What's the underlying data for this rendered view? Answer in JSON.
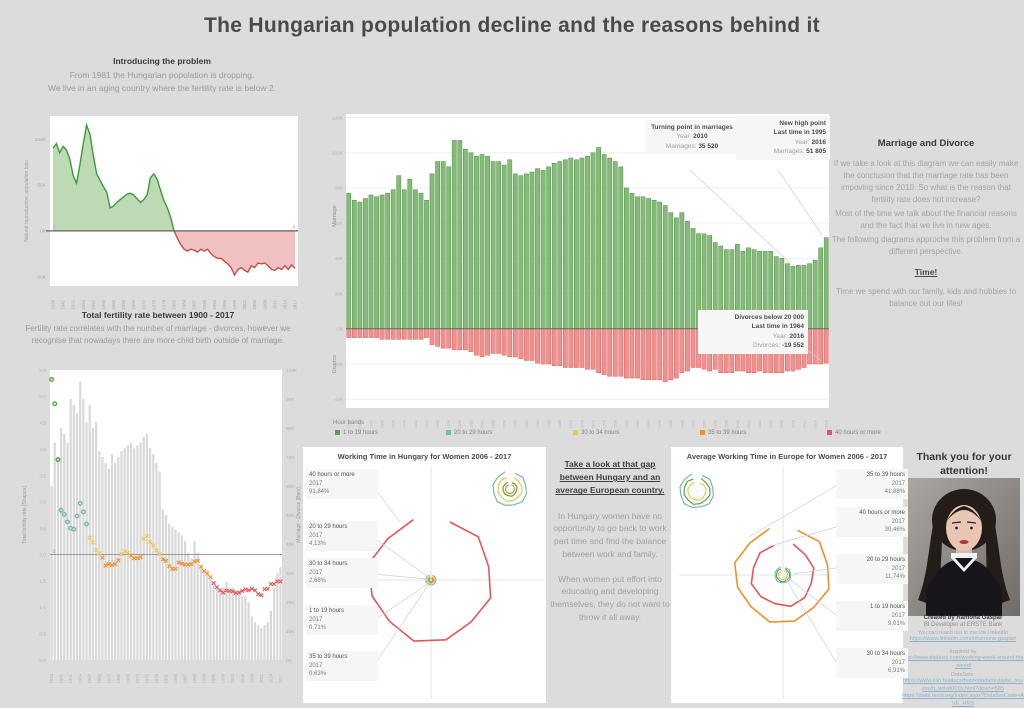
{
  "title": "The Hungarian population decline and the reasons behind it",
  "intro": {
    "heading": "Introducing the problem",
    "line1": "From  1981 the Hungarian population is dropping.",
    "line2": "We live in an aging country where the fertility rate is below 2."
  },
  "colors": {
    "green": "#59a14f",
    "teal": "#76b7b2",
    "yellow": "#edc948",
    "orange": "#f28e2b",
    "red": "#e15759",
    "bar_green_fill": "#85bb79",
    "bar_green_stroke": "#55914b",
    "bar_red_fill": "#ef918f",
    "bar_red_stroke": "#d95f5c",
    "area_green_fill": "#bedab5",
    "area_green_stroke": "#3a9a3c",
    "area_red_fill": "#f1c1c1",
    "area_red_stroke": "#c0504d",
    "gray_bar": "#d9d9d9",
    "link": "#8fb2c9"
  },
  "chart_data": [
    {
      "id": "natural",
      "type": "area",
      "ylabel": "Natural reproduction, population loss",
      "yticks": [
        {
          "label": "100K",
          "v": 100
        },
        {
          "label": "50K",
          "v": 50
        },
        {
          "label": "0K",
          "v": 0
        },
        {
          "label": "-50K",
          "v": -50
        }
      ],
      "ylim": [
        -60,
        125
      ],
      "x_years": {
        "head": [
          1938,
          1939,
          1940,
          1941,
          1942,
          1943
        ],
        "from": 1951,
        "to": 2017
      },
      "xticklabels": [
        "1938",
        "1941",
        "1951",
        "1954",
        "1957",
        "1960",
        "1963",
        "1966",
        "1969",
        "1972",
        "1975",
        "1978",
        "1981",
        "1984",
        "1987",
        "1990",
        "1993",
        "1996",
        "1999",
        "2002",
        "2005",
        "2008",
        "2011",
        "2014",
        "2017"
      ],
      "zero_labels": [
        "0",
        "0"
      ],
      "values": [
        90,
        95,
        85,
        92,
        88,
        78,
        60,
        52,
        72,
        95,
        115,
        105,
        82,
        62,
        55,
        48,
        42,
        25,
        27,
        31,
        34,
        37,
        40,
        41,
        39,
        35,
        31,
        34,
        39,
        58,
        62,
        56,
        44,
        33,
        25,
        15,
        0,
        -8,
        -15,
        -20,
        -22,
        -20,
        -21,
        -23,
        -20,
        -22,
        -20,
        -25,
        -28,
        -30,
        -30,
        -33,
        -36,
        -40,
        -48,
        -42,
        -40,
        -43,
        -45,
        -38,
        -40,
        -35,
        -36,
        -35,
        -38,
        -42,
        -43,
        -40,
        -42,
        -38,
        -42,
        -37,
        -41
      ]
    },
    {
      "id": "marriage_divorce",
      "type": "bar",
      "ylabel_top": "Marriage",
      "ylabel_bottom": "Divorce",
      "yticks": [
        {
          "label": "120K",
          "v": 120
        },
        {
          "label": "100K",
          "v": 100
        },
        {
          "label": "80K",
          "v": 80
        },
        {
          "label": "60K",
          "v": 60
        },
        {
          "label": "40K",
          "v": 40
        },
        {
          "label": "20K",
          "v": 20
        },
        {
          "label": "0K",
          "v": 0
        },
        {
          "label": "-20K",
          "v": -20
        },
        {
          "label": "-40K",
          "v": -40
        }
      ],
      "ylim": [
        -45,
        122
      ],
      "x_years": {
        "from": 1930,
        "to": 2016
      },
      "xtick_step": 2,
      "series": [
        {
          "name": "Marriage",
          "values": [
            77,
            73,
            72,
            74,
            76,
            75,
            76,
            77,
            79,
            87,
            79,
            85,
            79,
            77,
            73,
            88,
            95,
            95,
            92,
            107,
            107,
            102,
            100,
            98,
            99,
            98,
            95,
            95,
            93,
            96,
            88,
            87,
            88,
            89,
            91,
            90,
            92,
            94,
            95,
            96,
            97,
            96,
            97,
            98,
            100,
            103,
            99,
            97,
            95,
            92,
            80,
            77,
            75,
            75,
            74,
            73,
            72,
            70,
            66,
            63,
            66,
            61,
            57,
            54,
            54,
            53,
            49,
            47,
            45,
            45,
            48,
            44,
            46,
            45,
            44,
            44,
            44,
            41,
            40,
            37,
            35.5,
            36,
            36,
            37,
            39,
            46,
            51.8
          ]
        },
        {
          "name": "Divorce",
          "values": [
            -5,
            -5,
            -5,
            -5,
            -5,
            -5,
            -6,
            -6,
            -6,
            -6,
            -6,
            -6,
            -6,
            -6,
            -5,
            -9,
            -10,
            -11,
            -11,
            -12,
            -12,
            -12,
            -13,
            -15,
            -16,
            -15,
            -14,
            -14,
            -15,
            -16,
            -16,
            -17,
            -18,
            -18,
            -19.5,
            -20,
            -20,
            -21,
            -21,
            -22,
            -22,
            -22,
            -22,
            -23,
            -23,
            -25,
            -26,
            -27,
            -27,
            -27,
            -28,
            -28,
            -28,
            -29,
            -29,
            -29,
            -29,
            -30,
            -29,
            -28,
            -25,
            -24,
            -22,
            -22,
            -23,
            -24,
            -23,
            -25,
            -25,
            -25,
            -24,
            -24,
            -25,
            -25,
            -24,
            -25,
            -25,
            -25,
            -25,
            -24,
            -24,
            -23,
            -22,
            -20,
            -20,
            -20,
            -19.5
          ]
        }
      ],
      "annotations": [
        {
          "title": "Turning point in marriages",
          "subtitle": "",
          "rows": [
            [
              "Year:",
              "2010"
            ],
            [
              "Marriages:",
              "35 520"
            ]
          ]
        },
        {
          "title": "New high point",
          "subtitle": "Last time in 1995",
          "rows": [
            [
              "Year:",
              "2016"
            ],
            [
              "Marriages:",
              "51 805"
            ]
          ]
        },
        {
          "title": "Divorces below 20 000",
          "subtitle": "Last time in 1964",
          "rows": [
            [
              "Year:",
              "2016"
            ],
            [
              "Divorces:",
              "-19 552"
            ]
          ]
        }
      ]
    },
    {
      "id": "fertility",
      "type": "combo",
      "heading": "Total fertility rate between 1900 - 2017",
      "subtext": "Fertility rate correlates with the number of marriage - divorces, however we recognise that nowadays there are more child birth outside of marriage.",
      "ylabel_left": "Total fertility rate [Shapes]",
      "ylabel_right": "Marriage - Divorce [Bars]",
      "yticks_left": [
        {
          "label": "5,5",
          "v": 5.5
        },
        {
          "label": "5,0",
          "v": 5
        },
        {
          "label": "4,5",
          "v": 4.5
        },
        {
          "label": "4,0",
          "v": 4
        },
        {
          "label": "3,5",
          "v": 3.5
        },
        {
          "label": "3,0",
          "v": 3
        },
        {
          "label": "2,5",
          "v": 2.5
        },
        {
          "label": "2,0",
          "v": 2
        },
        {
          "label": "1,5",
          "v": 1.5
        },
        {
          "label": "1,0",
          "v": 1
        },
        {
          "label": "0,5",
          "v": 0.5
        },
        {
          "label": "0,0",
          "v": 0
        }
      ],
      "yticks_right": [
        {
          "label": "100K",
          "v": 100
        },
        {
          "label": "90K",
          "v": 90
        },
        {
          "label": "80K",
          "v": 80
        },
        {
          "label": "70K",
          "v": 70
        },
        {
          "label": "60K",
          "v": 60
        },
        {
          "label": "50K",
          "v": 50
        },
        {
          "label": "40K",
          "v": 40
        },
        {
          "label": "30K",
          "v": 30
        },
        {
          "label": "20K",
          "v": 20
        },
        {
          "label": "10K",
          "v": 10
        },
        {
          "label": "0K",
          "v": 0
        }
      ],
      "ref_line": {
        "v": 2,
        "label": "2"
      },
      "x_years": {
        "head": [
          1910,
          1920,
          1930,
          1941,
          1942,
          1943
        ],
        "from": 1951,
        "to": 2017
      },
      "xticklabels": [
        "1910",
        "1941",
        "1951",
        "1954",
        "1957",
        "1960",
        "1963",
        "1966",
        "1969",
        "1972",
        "1975",
        "1978",
        "1981",
        "1984",
        "1987",
        "1990",
        "1993",
        "1996",
        "1999",
        "2002",
        "2005",
        "2008",
        "2011",
        "2014",
        "2017"
      ],
      "bars": [
        60,
        75,
        70,
        80,
        78,
        75,
        90,
        88,
        85,
        96,
        90,
        82,
        88,
        80,
        82,
        72,
        70,
        68,
        66,
        71,
        68,
        70,
        72,
        73,
        74,
        75,
        73,
        74,
        75,
        77,
        78,
        73,
        71,
        68,
        65,
        52,
        50,
        47,
        46,
        45,
        44,
        43,
        41,
        37,
        35,
        41,
        37,
        32,
        31,
        31,
        28,
        26,
        25,
        24,
        25,
        27,
        24,
        25,
        24,
        23,
        22,
        22,
        20,
        15,
        13,
        12,
        11,
        12,
        13,
        17,
        25,
        30,
        32
      ],
      "tfr": [
        5.32,
        4.86,
        3.8,
        2.84,
        2.76,
        2.62,
        2.5,
        2.48,
        2.73,
        2.97,
        2.81,
        2.58,
        2.32,
        2.23,
        2.08,
        2.02,
        1.94,
        1.79,
        1.82,
        1.8,
        1.82,
        1.89,
        2.01,
        2.06,
        2.03,
        1.98,
        1.93,
        1.93,
        1.95,
        2.3,
        2.35,
        2.24,
        2.17,
        2.08,
        2.01,
        1.91,
        1.88,
        1.78,
        1.73,
        1.73,
        1.85,
        1.83,
        1.81,
        1.81,
        1.82,
        1.87,
        1.88,
        1.77,
        1.69,
        1.64,
        1.57,
        1.46,
        1.38,
        1.32,
        1.28,
        1.32,
        1.31,
        1.3,
        1.27,
        1.28,
        1.31,
        1.34,
        1.32,
        1.35,
        1.32,
        1.25,
        1.23,
        1.34,
        1.35,
        1.44,
        1.44,
        1.49,
        1.49
      ]
    },
    {
      "id": "hu_radar",
      "type": "radar",
      "title": "Working Time in Hungary for Women 2006 - 2017",
      "annotations": [
        {
          "band": "40 hours or more",
          "year": "2017",
          "value": "91,84%",
          "color": "red"
        },
        {
          "band": "20 to 29 hours",
          "year": "2017",
          "value": "4,13%",
          "color": "teal"
        },
        {
          "band": "30 to 34 hours",
          "year": "2017",
          "value": "2,68%",
          "color": "yellow"
        },
        {
          "band": "1 to 19 hours",
          "year": "2017",
          "value": "0,71%",
          "color": "green"
        },
        {
          "band": "35 to 39 hours",
          "year": "2017",
          "value": "0,63%",
          "color": "orange"
        }
      ]
    },
    {
      "id": "eu_radar",
      "type": "radar",
      "title": "Average Working Time in Europe for Women 2006 - 2017",
      "annotations": [
        {
          "band": "35 to 39 hours",
          "year": "2017",
          "value": "41,88%",
          "color": "orange"
        },
        {
          "band": "40 hours or more",
          "year": "2017",
          "value": "30,46%",
          "color": "red"
        },
        {
          "band": "20 to 29 hours",
          "year": "2017",
          "value": "11,74%",
          "color": "teal"
        },
        {
          "band": "1 to 19 hours",
          "year": "2017",
          "value": "9,01%",
          "color": "green"
        },
        {
          "band": "30 to 34 hours",
          "year": "2017",
          "value": "6,91%",
          "color": "yellow"
        }
      ]
    }
  ],
  "legend": {
    "label": "Hour bands",
    "items": [
      {
        "label": "1 to 19 hours",
        "color": "green"
      },
      {
        "label": "20 to 29 hours",
        "color": "teal"
      },
      {
        "label": "30 to 34 hours",
        "color": "yellow"
      },
      {
        "label": "35 to 39 hours",
        "color": "orange"
      },
      {
        "label": "40 hours or more",
        "color": "red"
      }
    ]
  },
  "marriage_text": {
    "heading": "Marriage and Divorce",
    "p1": "If we take a look at this diagram we can easily make the conclusion that the marriage rate has been impoving since 2010. So what is the reason that fertility rate does not increase?",
    "p2": "Most of the time we talk about the financial reasons and the fact that we live in new ages.",
    "p3": "The following diagrams approche this problem from a different perspective.",
    "time_heading": "Time!",
    "time_text": "Time we spend with our family, kids and hobbies to balance out our lifes!"
  },
  "gap_text": {
    "heading": "Take a look at that gap between Hungary and an average European country.",
    "p1": "In Hungary women have no opportunity to go back to work part time and find the balance between work and family.",
    "p2": "When women put effort into educating and developing themselves, they do not want to throw it all away."
  },
  "thanks": {
    "heading": "Thank you for your attention!",
    "created": "Created by Ramóna Gáspár",
    "role": "BI Developer at ERSTE Bank",
    "reach": "You can reach out to me via LinkedIn",
    "linkedin": "https://www.linkedin.com/in/ramona-gaspar/",
    "inspired_label": "Inspired by",
    "inspired_link": "http://www.dadaviz.com/working-week-around-the-world/",
    "datasets_label": "DataSets:",
    "dataset_link1": "https://www.ksh.hu/docs/hun/xstadat/xstadat_hosszu/h_wdsd001b.html?down=585",
    "dataset_link2": "https://stats.oecd.org/index.aspx?DataSetCode=AVE_HRS"
  }
}
